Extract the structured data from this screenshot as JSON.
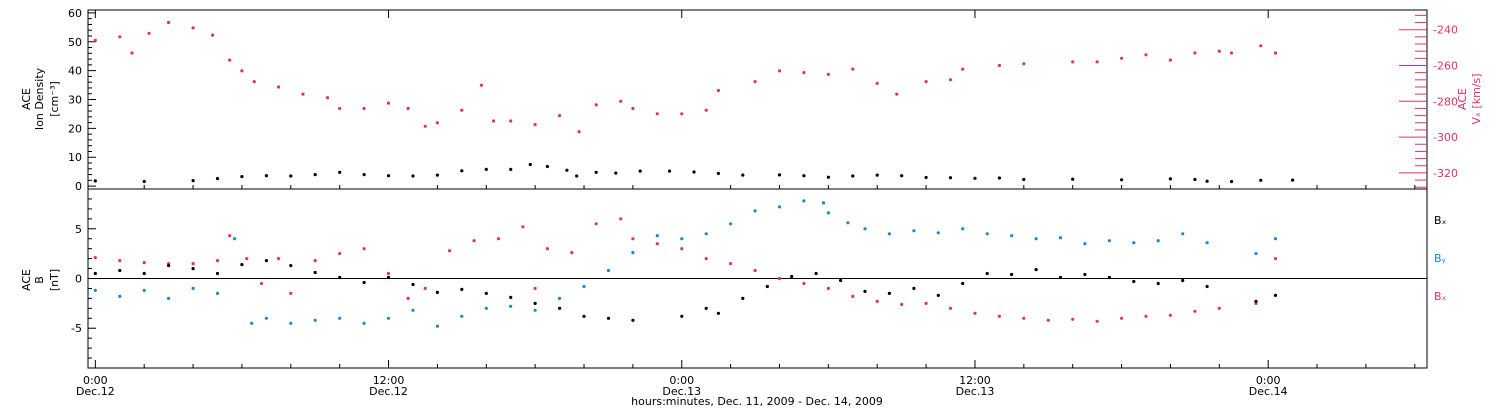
{
  "colors": {
    "axis": "#000000",
    "density": "#000000",
    "vx": "#e0336a",
    "bx": "#000000",
    "by": "#1a86d6",
    "bz": "#e0336a"
  },
  "chart_data": [
    {
      "panel": "top",
      "type": "scatter",
      "xlabel": "hours:minutes, Dec. 11, 2009 - Dec. 14, 2009",
      "x_unit": "hours since Dec.12 00:00",
      "x_range": [
        -0.3,
        54.5
      ],
      "x_ticks": [
        {
          "value": 0,
          "time": "0:00",
          "date": "Dec.12"
        },
        {
          "value": 12,
          "time": "12:00",
          "date": "Dec.12"
        },
        {
          "value": 24,
          "time": "0:00",
          "date": "Dec.13"
        },
        {
          "value": 36,
          "time": "12:00",
          "date": "Dec.13"
        },
        {
          "value": 48,
          "time": "0:00",
          "date": "Dec.14"
        }
      ],
      "y_left": {
        "label_lines": [
          "ACE",
          "Ion Density",
          "[cm⁻³]"
        ],
        "range": [
          -1,
          61
        ],
        "ticks": [
          0,
          10,
          20,
          30,
          40,
          50,
          60
        ]
      },
      "y_right": {
        "label_lines": [
          "ACE",
          "Vₓ [km/s]"
        ],
        "range": [
          -329,
          -229
        ],
        "ticks": [
          -320,
          -300,
          -280,
          -260,
          -240
        ]
      },
      "series": [
        {
          "name": "Ion Density",
          "axis": "left",
          "color_key": "density",
          "points": [
            [
              0,
              1.8
            ],
            [
              2,
              1.6
            ],
            [
              4,
              1.9
            ],
            [
              5,
              2.6
            ],
            [
              6,
              3.3
            ],
            [
              7,
              3.6
            ],
            [
              8,
              3.5
            ],
            [
              9,
              4.0
            ],
            [
              10,
              4.8
            ],
            [
              11,
              4.0
            ],
            [
              12,
              3.6
            ],
            [
              13,
              3.5
            ],
            [
              14,
              3.8
            ],
            [
              15,
              5.3
            ],
            [
              16,
              5.8
            ],
            [
              17,
              5.8
            ],
            [
              17.8,
              7.5
            ],
            [
              18.5,
              6.8
            ],
            [
              19.3,
              5.5
            ],
            [
              19.7,
              3.5
            ],
            [
              20.5,
              4.8
            ],
            [
              21.3,
              4.5
            ],
            [
              22.3,
              5.2
            ],
            [
              23.5,
              5.2
            ],
            [
              24.5,
              4.9
            ],
            [
              25.5,
              4.4
            ],
            [
              26.5,
              3.8
            ],
            [
              28,
              3.9
            ],
            [
              29,
              3.6
            ],
            [
              30,
              3.1
            ],
            [
              31,
              3.5
            ],
            [
              32,
              3.8
            ],
            [
              33,
              3.6
            ],
            [
              34,
              3.0
            ],
            [
              35,
              2.9
            ],
            [
              36,
              2.7
            ],
            [
              37,
              2.8
            ],
            [
              38,
              2.3
            ],
            [
              40,
              2.4
            ],
            [
              42,
              2.2
            ],
            [
              44,
              2.5
            ],
            [
              45,
              2.3
            ],
            [
              45.5,
              1.7
            ],
            [
              46.5,
              1.6
            ],
            [
              47.7,
              2.0
            ],
            [
              49,
              2.1
            ]
          ]
        },
        {
          "name": "Vx",
          "axis": "right",
          "color_key": "vx",
          "points": [
            [
              0,
              -246
            ],
            [
              1,
              -244
            ],
            [
              1.5,
              -253
            ],
            [
              2.2,
              -242
            ],
            [
              3,
              -236
            ],
            [
              4,
              -239
            ],
            [
              4.8,
              -243
            ],
            [
              5.5,
              -257
            ],
            [
              6,
              -263
            ],
            [
              6.5,
              -269
            ],
            [
              7.5,
              -272
            ],
            [
              8.5,
              -276
            ],
            [
              9.5,
              -278
            ],
            [
              10,
              -284
            ],
            [
              11,
              -284
            ],
            [
              12,
              -281
            ],
            [
              12.8,
              -284
            ],
            [
              13.5,
              -294
            ],
            [
              14,
              -292
            ],
            [
              15,
              -285
            ],
            [
              15.8,
              -271
            ],
            [
              16.3,
              -291
            ],
            [
              17,
              -291
            ],
            [
              18,
              -293
            ],
            [
              19,
              -288
            ],
            [
              19.8,
              -297
            ],
            [
              20.5,
              -282
            ],
            [
              21.5,
              -280
            ],
            [
              22,
              -284
            ],
            [
              23,
              -287
            ],
            [
              24,
              -287
            ],
            [
              25,
              -285
            ],
            [
              25.5,
              -274
            ],
            [
              27,
              -269
            ],
            [
              28,
              -263
            ],
            [
              29,
              -264
            ],
            [
              30,
              -265
            ],
            [
              31,
              -262
            ],
            [
              32,
              -270
            ],
            [
              32.8,
              -276
            ],
            [
              34,
              -269
            ],
            [
              35,
              -268
            ],
            [
              35.5,
              -262
            ],
            [
              37,
              -260
            ],
            [
              38,
              -259
            ],
            [
              40,
              -258
            ],
            [
              41,
              -258
            ],
            [
              42,
              -256
            ],
            [
              43,
              -254
            ],
            [
              44,
              -257
            ],
            [
              45,
              -253
            ],
            [
              46,
              -252
            ],
            [
              46.5,
              -253
            ],
            [
              47.7,
              -249
            ],
            [
              48.3,
              -253
            ]
          ]
        }
      ]
    },
    {
      "panel": "bottom",
      "type": "scatter",
      "y_left": {
        "label_lines": [
          "ACE",
          "B",
          "[nT]"
        ],
        "range": [
          -9,
          9
        ],
        "ticks": [
          -5,
          0,
          5
        ],
        "zero_line": true
      },
      "legend": [
        "Bₓ",
        "Bᵧ",
        "Bₓ"
      ],
      "series": [
        {
          "name": "Bx",
          "legend_text": "Bₓ",
          "color_key": "bx",
          "points": [
            [
              0,
              0.5
            ],
            [
              1,
              0.8
            ],
            [
              2,
              0.5
            ],
            [
              3,
              1.3
            ],
            [
              4,
              1.0
            ],
            [
              5,
              0.5
            ],
            [
              6,
              1.4
            ],
            [
              7,
              1.8
            ],
            [
              8,
              1.3
            ],
            [
              9,
              0.6
            ],
            [
              10,
              0.1
            ],
            [
              11,
              -0.4
            ],
            [
              12,
              0.1
            ],
            [
              13,
              -0.6
            ],
            [
              14,
              -1.4
            ],
            [
              15,
              -1.1
            ],
            [
              16,
              -1.5
            ],
            [
              17,
              -1.9
            ],
            [
              18,
              -2.5
            ],
            [
              19,
              -3.0
            ],
            [
              20,
              -3.8
            ],
            [
              21,
              -4.0
            ],
            [
              22,
              -4.2
            ],
            [
              24,
              -3.8
            ],
            [
              25,
              -3.0
            ],
            [
              25.5,
              -3.5
            ],
            [
              26.5,
              -2.0
            ],
            [
              27.5,
              -0.8
            ],
            [
              28.5,
              0.2
            ],
            [
              29.5,
              0.5
            ],
            [
              30.5,
              -0.2
            ],
            [
              31.5,
              -1.3
            ],
            [
              32.5,
              -1.5
            ],
            [
              33.5,
              -1.0
            ],
            [
              34.5,
              -1.7
            ],
            [
              35.5,
              -0.5
            ],
            [
              36.5,
              0.5
            ],
            [
              37.5,
              0.4
            ],
            [
              38.5,
              0.9
            ],
            [
              39.5,
              0.1
            ],
            [
              40.5,
              0.4
            ],
            [
              41.5,
              0.1
            ],
            [
              42.5,
              -0.3
            ],
            [
              43.5,
              -0.5
            ],
            [
              44.5,
              -0.2
            ],
            [
              45.5,
              -0.8
            ],
            [
              47.5,
              -2.3
            ],
            [
              48.3,
              -1.7
            ]
          ]
        },
        {
          "name": "By",
          "legend_text": "Bᵧ",
          "color_key": "by",
          "points": [
            [
              0,
              -1.2
            ],
            [
              1,
              -1.8
            ],
            [
              2,
              -1.2
            ],
            [
              3,
              -2.0
            ],
            [
              4,
              -1.0
            ],
            [
              5,
              -1.5
            ],
            [
              5.7,
              4.0
            ],
            [
              6.4,
              -4.5
            ],
            [
              7,
              -4.0
            ],
            [
              8,
              -4.5
            ],
            [
              9,
              -4.2
            ],
            [
              10,
              -4.0
            ],
            [
              11,
              -4.5
            ],
            [
              12,
              -4.0
            ],
            [
              13,
              -3.2
            ],
            [
              14,
              -4.8
            ],
            [
              15,
              -3.8
            ],
            [
              16,
              -3.0
            ],
            [
              17,
              -2.8
            ],
            [
              18,
              -3.2
            ],
            [
              19,
              -2.0
            ],
            [
              20,
              -0.8
            ],
            [
              21,
              0.8
            ],
            [
              22,
              2.6
            ],
            [
              23,
              4.3
            ],
            [
              24,
              4.0
            ],
            [
              25,
              4.5
            ],
            [
              26,
              5.5
            ],
            [
              27,
              6.8
            ],
            [
              28,
              7.2
            ],
            [
              29,
              7.8
            ],
            [
              29.8,
              7.6
            ],
            [
              30,
              6.6
            ],
            [
              30.8,
              5.6
            ],
            [
              31.5,
              5.0
            ],
            [
              32.5,
              4.5
            ],
            [
              33.5,
              4.8
            ],
            [
              34.5,
              4.6
            ],
            [
              35.5,
              5.0
            ],
            [
              36.5,
              4.5
            ],
            [
              37.5,
              4.3
            ],
            [
              38.5,
              4.0
            ],
            [
              39.5,
              4.1
            ],
            [
              40.5,
              3.5
            ],
            [
              41.5,
              3.8
            ],
            [
              42.5,
              3.6
            ],
            [
              43.5,
              3.8
            ],
            [
              44.5,
              4.5
            ],
            [
              45.5,
              3.6
            ],
            [
              47.5,
              2.5
            ],
            [
              48.3,
              4.0
            ]
          ]
        },
        {
          "name": "Bz",
          "legend_text": "Bₓ",
          "color_key": "bz",
          "points": [
            [
              0,
              2.1
            ],
            [
              1,
              1.8
            ],
            [
              2,
              1.6
            ],
            [
              3,
              1.5
            ],
            [
              4,
              1.5
            ],
            [
              5,
              1.8
            ],
            [
              5.5,
              4.3
            ],
            [
              6.2,
              2.0
            ],
            [
              6.8,
              -0.5
            ],
            [
              7.5,
              2.0
            ],
            [
              8,
              -1.5
            ],
            [
              9,
              1.8
            ],
            [
              10,
              2.5
            ],
            [
              11,
              3.0
            ],
            [
              12,
              0.5
            ],
            [
              12.8,
              -2.0
            ],
            [
              13.5,
              -1.0
            ],
            [
              14.5,
              2.8
            ],
            [
              15.5,
              3.8
            ],
            [
              16.5,
              4.0
            ],
            [
              17.5,
              5.2
            ],
            [
              18,
              -1.0
            ],
            [
              18.5,
              3.0
            ],
            [
              19.5,
              2.6
            ],
            [
              20.5,
              5.5
            ],
            [
              21.5,
              6.0
            ],
            [
              22,
              4.0
            ],
            [
              23,
              3.5
            ],
            [
              24,
              3.0
            ],
            [
              25,
              2.0
            ],
            [
              26,
              1.5
            ],
            [
              27,
              0.8
            ],
            [
              28,
              0.0
            ],
            [
              29,
              -0.5
            ],
            [
              30,
              -1.0
            ],
            [
              31,
              -1.8
            ],
            [
              32,
              -2.3
            ],
            [
              33,
              -2.6
            ],
            [
              34,
              -2.5
            ],
            [
              35,
              -3.0
            ],
            [
              36,
              -3.5
            ],
            [
              37,
              -3.8
            ],
            [
              38,
              -4.0
            ],
            [
              39,
              -4.2
            ],
            [
              40,
              -4.1
            ],
            [
              41,
              -4.3
            ],
            [
              42,
              -4.0
            ],
            [
              43,
              -3.8
            ],
            [
              44,
              -3.7
            ],
            [
              45,
              -3.3
            ],
            [
              46,
              -3.0
            ],
            [
              47.5,
              -2.5
            ],
            [
              48.3,
              2.0
            ]
          ]
        }
      ]
    }
  ]
}
